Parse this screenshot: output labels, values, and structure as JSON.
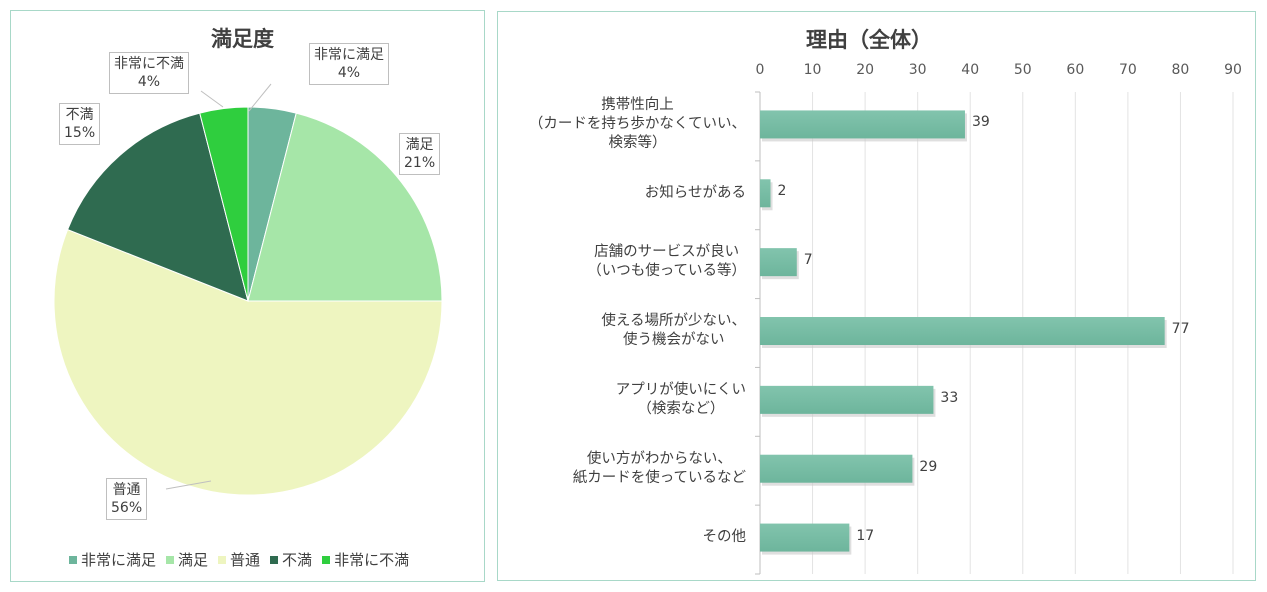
{
  "colors": {
    "very_satisfied": "#6db59c",
    "satisfied": "#a6e6a8",
    "normal": "#eef5c0",
    "dissatisfied": "#2f6b50",
    "very_dissatisfied": "#2fce3e",
    "bar": "#6db59c",
    "border": "#a8d8c8"
  },
  "chart_data": [
    {
      "type": "pie",
      "title": "満足度",
      "slices": [
        {
          "name": "非常に満足",
          "value": 4,
          "label": "4%",
          "color": "#6db59c"
        },
        {
          "name": "満足",
          "value": 21,
          "label": "21%",
          "color": "#a6e6a8"
        },
        {
          "name": "普通",
          "value": 56,
          "label": "56%",
          "color": "#eef5c0"
        },
        {
          "name": "不満",
          "value": 15,
          "label": "15%",
          "color": "#2f6b50"
        },
        {
          "name": "非常に不満",
          "value": 4,
          "label": "4%",
          "color": "#2fce3e"
        }
      ],
      "legend": "bottom"
    },
    {
      "type": "bar",
      "orientation": "horizontal",
      "title": "理由（全体）",
      "categories": [
        [
          "携帯性向上",
          "（カードを持ち歩かなくていい、",
          "検索等）"
        ],
        [
          "お知らせがある"
        ],
        [
          "店舗のサービスが良い",
          "（いつも使っている等）"
        ],
        [
          "使える場所が少ない、",
          "使う機会がない"
        ],
        [
          "アプリが使いにくい",
          "（検索など）"
        ],
        [
          "使い方がわからない、",
          "紙カードを使っているなど"
        ],
        [
          "その他"
        ]
      ],
      "values": [
        39,
        2,
        7,
        77,
        33,
        29,
        17
      ],
      "xlim": [
        0,
        90
      ],
      "ticks": [
        0,
        10,
        20,
        30,
        40,
        50,
        60,
        70,
        80,
        90
      ],
      "grid": true,
      "axis_position": "top"
    }
  ]
}
